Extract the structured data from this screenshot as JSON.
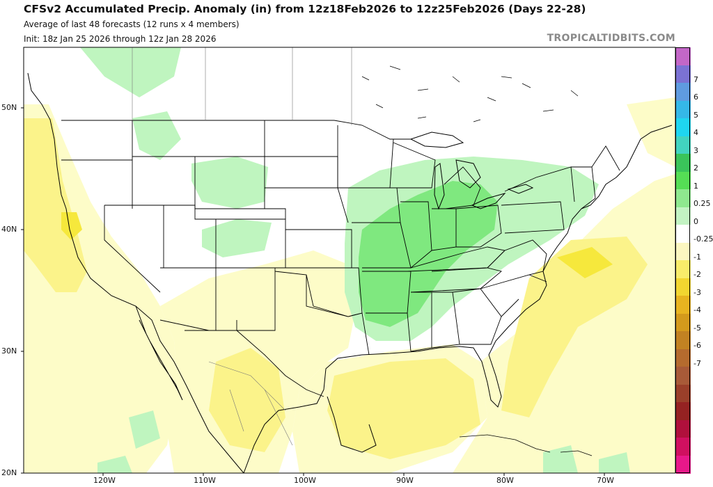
{
  "header": {
    "title": "CFSv2 Accumulated Precip. Anomaly (in) from 12z18Feb2026 to 12z25Feb2026 (Days 22-28)",
    "subtitle": "Average of last 48 forecasts (12 runs x 4 members)",
    "init": "Init: 18z Jan 25 2026 through 12z Jan 28 2026",
    "credit": "TROPICALTIDBITS.COM"
  },
  "map": {
    "lat_labels": [
      "50N",
      "40N",
      "30N",
      "20N"
    ],
    "lon_labels": [
      "120W",
      "110W",
      "100W",
      "90W",
      "80W",
      "70W"
    ],
    "colors": {
      "land_outline": "#000000",
      "wet_light": "#bff5bf",
      "wet_medium": "#7fe87f",
      "dry_light": "#fdfcc8",
      "dry_medium": "#fbf38a",
      "dry_strong": "#f6e83c"
    }
  },
  "colorbar": {
    "labels": [
      "7",
      "6",
      "5",
      "4",
      "3",
      "2",
      "1",
      "0.25",
      "0",
      "-0.25",
      "-1",
      "-2",
      "-3",
      "-4",
      "-5",
      "-6",
      "-7"
    ],
    "colors": [
      "#c367c7",
      "#7b72d4",
      "#5f9be0",
      "#35b8e8",
      "#1fd6f0",
      "#42d4c0",
      "#3ac45a",
      "#55dd55",
      "#8fe88f",
      "#c3f3c3",
      "#ffffff",
      "#fbf6c0",
      "#f8ec6a",
      "#f2d630",
      "#e8b420",
      "#d49a1c",
      "#c28222",
      "#b56b2e",
      "#a85a38",
      "#9a3f2a",
      "#952222",
      "#b0103c",
      "#d01060",
      "#e8188a"
    ]
  }
}
